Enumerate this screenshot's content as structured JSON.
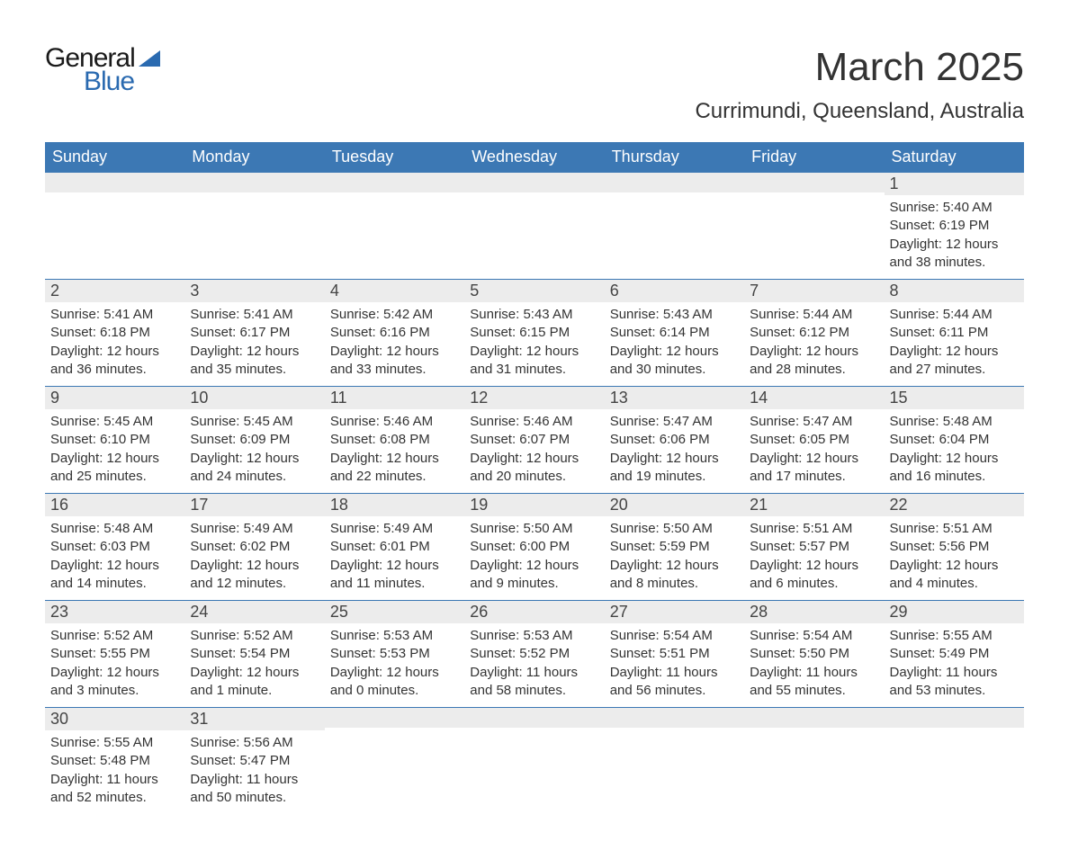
{
  "logo": {
    "part1": "General",
    "part2": "Blue"
  },
  "title": {
    "month": "March 2025",
    "location": "Currimundi, Queensland, Australia"
  },
  "colors": {
    "header_bg": "#3c78b4",
    "header_text": "#ffffff",
    "daynum_bg": "#ececec",
    "body_text": "#333333",
    "row_border": "#3c78b4",
    "logo_blue": "#2a6ab0"
  },
  "day_labels": [
    "Sunday",
    "Monday",
    "Tuesday",
    "Wednesday",
    "Thursday",
    "Friday",
    "Saturday"
  ],
  "weeks": [
    [
      {
        "n": "",
        "sunrise": "",
        "sunset": "",
        "daylight": ""
      },
      {
        "n": "",
        "sunrise": "",
        "sunset": "",
        "daylight": ""
      },
      {
        "n": "",
        "sunrise": "",
        "sunset": "",
        "daylight": ""
      },
      {
        "n": "",
        "sunrise": "",
        "sunset": "",
        "daylight": ""
      },
      {
        "n": "",
        "sunrise": "",
        "sunset": "",
        "daylight": ""
      },
      {
        "n": "",
        "sunrise": "",
        "sunset": "",
        "daylight": ""
      },
      {
        "n": "1",
        "sunrise": "Sunrise: 5:40 AM",
        "sunset": "Sunset: 6:19 PM",
        "daylight": "Daylight: 12 hours and 38 minutes."
      }
    ],
    [
      {
        "n": "2",
        "sunrise": "Sunrise: 5:41 AM",
        "sunset": "Sunset: 6:18 PM",
        "daylight": "Daylight: 12 hours and 36 minutes."
      },
      {
        "n": "3",
        "sunrise": "Sunrise: 5:41 AM",
        "sunset": "Sunset: 6:17 PM",
        "daylight": "Daylight: 12 hours and 35 minutes."
      },
      {
        "n": "4",
        "sunrise": "Sunrise: 5:42 AM",
        "sunset": "Sunset: 6:16 PM",
        "daylight": "Daylight: 12 hours and 33 minutes."
      },
      {
        "n": "5",
        "sunrise": "Sunrise: 5:43 AM",
        "sunset": "Sunset: 6:15 PM",
        "daylight": "Daylight: 12 hours and 31 minutes."
      },
      {
        "n": "6",
        "sunrise": "Sunrise: 5:43 AM",
        "sunset": "Sunset: 6:14 PM",
        "daylight": "Daylight: 12 hours and 30 minutes."
      },
      {
        "n": "7",
        "sunrise": "Sunrise: 5:44 AM",
        "sunset": "Sunset: 6:12 PM",
        "daylight": "Daylight: 12 hours and 28 minutes."
      },
      {
        "n": "8",
        "sunrise": "Sunrise: 5:44 AM",
        "sunset": "Sunset: 6:11 PM",
        "daylight": "Daylight: 12 hours and 27 minutes."
      }
    ],
    [
      {
        "n": "9",
        "sunrise": "Sunrise: 5:45 AM",
        "sunset": "Sunset: 6:10 PM",
        "daylight": "Daylight: 12 hours and 25 minutes."
      },
      {
        "n": "10",
        "sunrise": "Sunrise: 5:45 AM",
        "sunset": "Sunset: 6:09 PM",
        "daylight": "Daylight: 12 hours and 24 minutes."
      },
      {
        "n": "11",
        "sunrise": "Sunrise: 5:46 AM",
        "sunset": "Sunset: 6:08 PM",
        "daylight": "Daylight: 12 hours and 22 minutes."
      },
      {
        "n": "12",
        "sunrise": "Sunrise: 5:46 AM",
        "sunset": "Sunset: 6:07 PM",
        "daylight": "Daylight: 12 hours and 20 minutes."
      },
      {
        "n": "13",
        "sunrise": "Sunrise: 5:47 AM",
        "sunset": "Sunset: 6:06 PM",
        "daylight": "Daylight: 12 hours and 19 minutes."
      },
      {
        "n": "14",
        "sunrise": "Sunrise: 5:47 AM",
        "sunset": "Sunset: 6:05 PM",
        "daylight": "Daylight: 12 hours and 17 minutes."
      },
      {
        "n": "15",
        "sunrise": "Sunrise: 5:48 AM",
        "sunset": "Sunset: 6:04 PM",
        "daylight": "Daylight: 12 hours and 16 minutes."
      }
    ],
    [
      {
        "n": "16",
        "sunrise": "Sunrise: 5:48 AM",
        "sunset": "Sunset: 6:03 PM",
        "daylight": "Daylight: 12 hours and 14 minutes."
      },
      {
        "n": "17",
        "sunrise": "Sunrise: 5:49 AM",
        "sunset": "Sunset: 6:02 PM",
        "daylight": "Daylight: 12 hours and 12 minutes."
      },
      {
        "n": "18",
        "sunrise": "Sunrise: 5:49 AM",
        "sunset": "Sunset: 6:01 PM",
        "daylight": "Daylight: 12 hours and 11 minutes."
      },
      {
        "n": "19",
        "sunrise": "Sunrise: 5:50 AM",
        "sunset": "Sunset: 6:00 PM",
        "daylight": "Daylight: 12 hours and 9 minutes."
      },
      {
        "n": "20",
        "sunrise": "Sunrise: 5:50 AM",
        "sunset": "Sunset: 5:59 PM",
        "daylight": "Daylight: 12 hours and 8 minutes."
      },
      {
        "n": "21",
        "sunrise": "Sunrise: 5:51 AM",
        "sunset": "Sunset: 5:57 PM",
        "daylight": "Daylight: 12 hours and 6 minutes."
      },
      {
        "n": "22",
        "sunrise": "Sunrise: 5:51 AM",
        "sunset": "Sunset: 5:56 PM",
        "daylight": "Daylight: 12 hours and 4 minutes."
      }
    ],
    [
      {
        "n": "23",
        "sunrise": "Sunrise: 5:52 AM",
        "sunset": "Sunset: 5:55 PM",
        "daylight": "Daylight: 12 hours and 3 minutes."
      },
      {
        "n": "24",
        "sunrise": "Sunrise: 5:52 AM",
        "sunset": "Sunset: 5:54 PM",
        "daylight": "Daylight: 12 hours and 1 minute."
      },
      {
        "n": "25",
        "sunrise": "Sunrise: 5:53 AM",
        "sunset": "Sunset: 5:53 PM",
        "daylight": "Daylight: 12 hours and 0 minutes."
      },
      {
        "n": "26",
        "sunrise": "Sunrise: 5:53 AM",
        "sunset": "Sunset: 5:52 PM",
        "daylight": "Daylight: 11 hours and 58 minutes."
      },
      {
        "n": "27",
        "sunrise": "Sunrise: 5:54 AM",
        "sunset": "Sunset: 5:51 PM",
        "daylight": "Daylight: 11 hours and 56 minutes."
      },
      {
        "n": "28",
        "sunrise": "Sunrise: 5:54 AM",
        "sunset": "Sunset: 5:50 PM",
        "daylight": "Daylight: 11 hours and 55 minutes."
      },
      {
        "n": "29",
        "sunrise": "Sunrise: 5:55 AM",
        "sunset": "Sunset: 5:49 PM",
        "daylight": "Daylight: 11 hours and 53 minutes."
      }
    ],
    [
      {
        "n": "30",
        "sunrise": "Sunrise: 5:55 AM",
        "sunset": "Sunset: 5:48 PM",
        "daylight": "Daylight: 11 hours and 52 minutes."
      },
      {
        "n": "31",
        "sunrise": "Sunrise: 5:56 AM",
        "sunset": "Sunset: 5:47 PM",
        "daylight": "Daylight: 11 hours and 50 minutes."
      },
      {
        "n": "",
        "sunrise": "",
        "sunset": "",
        "daylight": ""
      },
      {
        "n": "",
        "sunrise": "",
        "sunset": "",
        "daylight": ""
      },
      {
        "n": "",
        "sunrise": "",
        "sunset": "",
        "daylight": ""
      },
      {
        "n": "",
        "sunrise": "",
        "sunset": "",
        "daylight": ""
      },
      {
        "n": "",
        "sunrise": "",
        "sunset": "",
        "daylight": ""
      }
    ]
  ]
}
